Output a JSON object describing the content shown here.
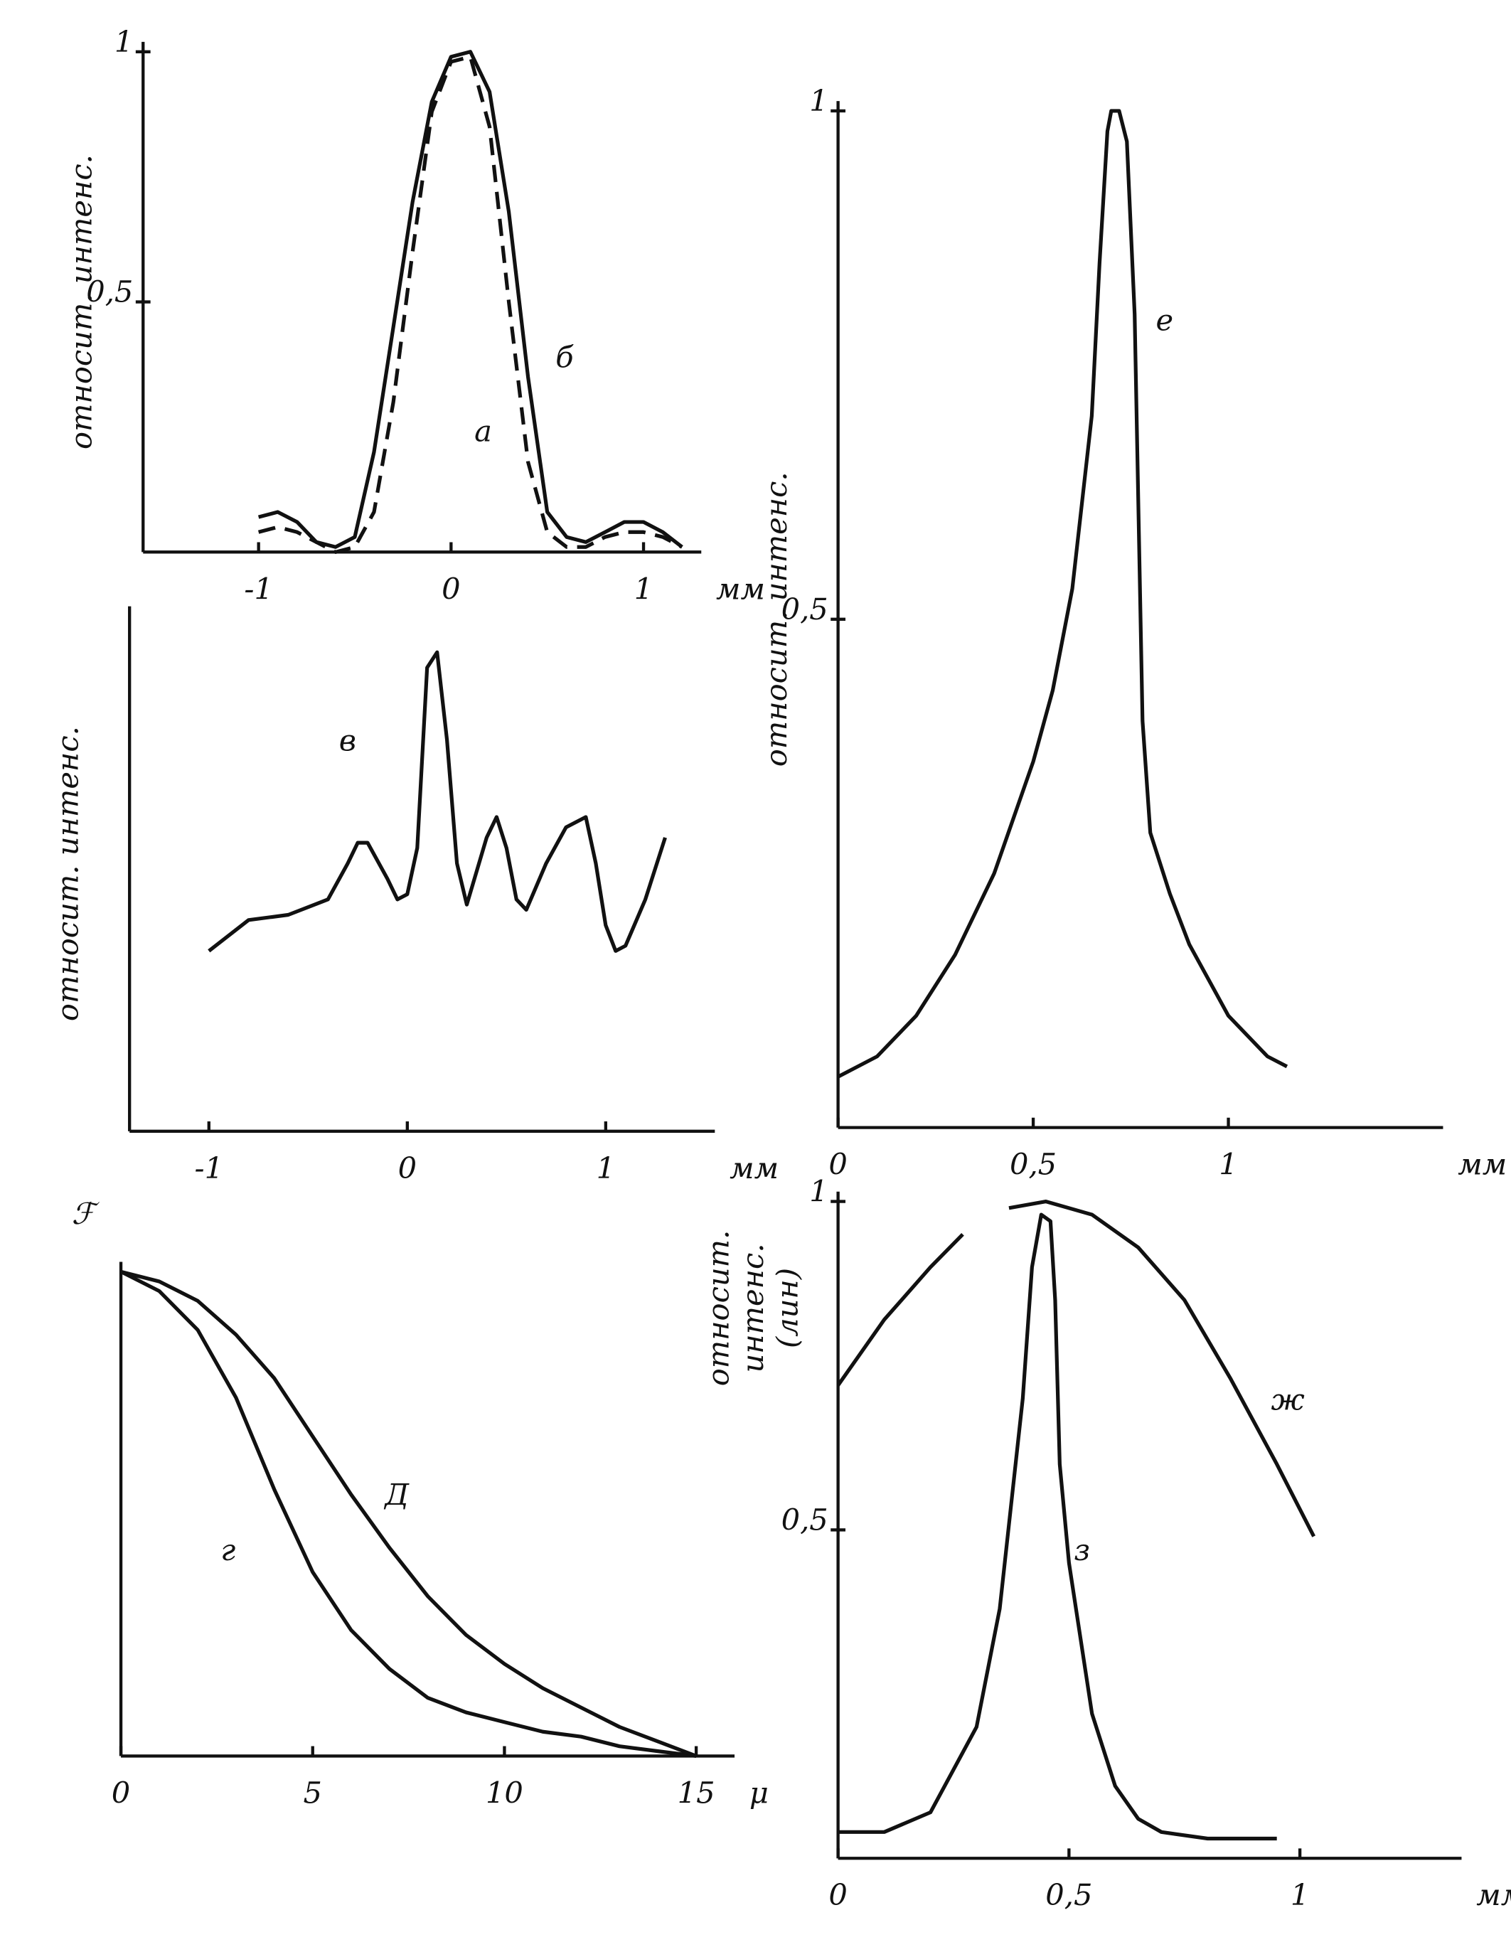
{
  "chart_data": [
    {
      "type": "line",
      "ylabel": "относит. интенс.",
      "xlabel": "мм",
      "xlim": [
        -1.6,
        1.3
      ],
      "ylim": [
        0,
        1
      ],
      "xticks": [
        -1,
        0,
        1
      ],
      "yticks": [
        {
          "value": 0.5,
          "label": "0,5"
        },
        1
      ],
      "series": [
        {
          "name": "а",
          "color": "#111111",
          "dash": true,
          "x": [
            -1,
            -0.9,
            -0.8,
            -0.7,
            -0.6,
            -0.5,
            -0.4,
            -0.3,
            -0.2,
            -0.1,
            0,
            0.1,
            0.2,
            0.3,
            0.4,
            0.5,
            0.6,
            0.7,
            0.8,
            0.9,
            1.0,
            1.1,
            1.2
          ],
          "values": [
            0.04,
            0.05,
            0.04,
            0.02,
            0.0,
            0.01,
            0.08,
            0.3,
            0.6,
            0.88,
            0.98,
            0.99,
            0.85,
            0.5,
            0.18,
            0.04,
            0.01,
            0.01,
            0.03,
            0.04,
            0.04,
            0.03,
            0.01
          ]
        },
        {
          "name": "б",
          "color": "#111111",
          "x": [
            -1,
            -0.9,
            -0.8,
            -0.7,
            -0.6,
            -0.5,
            -0.4,
            -0.3,
            -0.2,
            -0.1,
            0,
            0.1,
            0.2,
            0.3,
            0.4,
            0.5,
            0.6,
            0.7,
            0.8,
            0.9,
            1.0,
            1.1,
            1.2
          ],
          "values": [
            0.07,
            0.08,
            0.06,
            0.02,
            0.01,
            0.03,
            0.2,
            0.45,
            0.7,
            0.9,
            0.99,
            1.0,
            0.92,
            0.68,
            0.35,
            0.08,
            0.03,
            0.02,
            0.04,
            0.06,
            0.06,
            0.04,
            0.01
          ]
        }
      ]
    },
    {
      "type": "line",
      "ylabel": "относит. интенс.",
      "xlabel": "мм",
      "xlim": [
        -1.4,
        1.55
      ],
      "ylim": [
        0,
        1
      ],
      "xticks": [
        -1,
        0,
        1
      ],
      "yticks": [],
      "series": [
        {
          "name": "в",
          "color": "#111111",
          "x": [
            -1,
            -0.8,
            -0.6,
            -0.4,
            -0.3,
            -0.25,
            -0.2,
            -0.1,
            -0.05,
            0,
            0.05,
            0.1,
            0.15,
            0.2,
            0.25,
            0.3,
            0.4,
            0.45,
            0.5,
            0.55,
            0.6,
            0.7,
            0.8,
            0.9,
            0.95,
            1.0,
            1.05,
            1.1,
            1.2,
            1.3
          ],
          "values": [
            0.35,
            0.41,
            0.42,
            0.45,
            0.52,
            0.56,
            0.56,
            0.49,
            0.45,
            0.46,
            0.55,
            0.9,
            0.93,
            0.76,
            0.52,
            0.44,
            0.57,
            0.61,
            0.55,
            0.45,
            0.43,
            0.52,
            0.59,
            0.61,
            0.52,
            0.4,
            0.35,
            0.36,
            0.45,
            0.57
          ]
        }
      ]
    },
    {
      "type": "line",
      "ylabel": "ℱ",
      "xlabel": "μ",
      "xlim": [
        0,
        16
      ],
      "ylim": [
        0,
        1
      ],
      "xticks": [
        0,
        5,
        10,
        15
      ],
      "yticks": [],
      "series": [
        {
          "name": "г",
          "color": "#111111",
          "x": [
            0,
            1,
            2,
            3,
            4,
            5,
            6,
            7,
            8,
            9,
            10,
            11,
            12,
            13,
            14,
            15
          ],
          "values": [
            1,
            0.96,
            0.88,
            0.74,
            0.55,
            0.38,
            0.26,
            0.18,
            0.12,
            0.09,
            0.07,
            0.05,
            0.04,
            0.02,
            0.01,
            0
          ]
        },
        {
          "name": "Д",
          "color": "#111111",
          "x": [
            0,
            1,
            2,
            3,
            4,
            5,
            6,
            7,
            8,
            9,
            10,
            11,
            12,
            13,
            14,
            15
          ],
          "values": [
            1,
            0.98,
            0.94,
            0.87,
            0.78,
            0.66,
            0.54,
            0.43,
            0.33,
            0.25,
            0.19,
            0.14,
            0.1,
            0.06,
            0.03,
            0
          ]
        }
      ]
    },
    {
      "type": "line",
      "ylabel": "относит. интенс.",
      "xlabel": "мм",
      "xlim": [
        0,
        1.55
      ],
      "ylim": [
        0,
        1
      ],
      "xticks": [
        0,
        {
          "value": 0.5,
          "label": "0,5"
        },
        1
      ],
      "yticks": [
        {
          "value": 0.5,
          "label": "0,5"
        },
        1
      ],
      "series": [
        {
          "name": "е",
          "color": "#111111",
          "x": [
            0,
            0.1,
            0.2,
            0.3,
            0.4,
            0.5,
            0.55,
            0.6,
            0.65,
            0.67,
            0.69,
            0.7,
            0.72,
            0.74,
            0.76,
            0.78,
            0.8,
            0.85,
            0.9,
            1.0,
            1.1,
            1.15
          ],
          "values": [
            0.05,
            0.07,
            0.11,
            0.17,
            0.25,
            0.36,
            0.43,
            0.53,
            0.7,
            0.85,
            0.98,
            1.0,
            1.0,
            0.97,
            0.8,
            0.4,
            0.29,
            0.23,
            0.18,
            0.11,
            0.07,
            0.06
          ]
        }
      ]
    },
    {
      "type": "line",
      "ylabel": [
        "относит.",
        "интенс.",
        "(лин)"
      ],
      "xlabel": "мм",
      "xlim": [
        0,
        1.35
      ],
      "ylim": [
        0,
        1
      ],
      "xticks": [
        0,
        {
          "value": 0.5,
          "label": "0,5"
        },
        1
      ],
      "yticks": [
        {
          "value": 0.5,
          "label": "0,5"
        },
        1
      ],
      "series": [
        {
          "name": "ж",
          "color": "#111111",
          "x": [
            0,
            0.1,
            0.2,
            0.27,
            0.3,
            0.37,
            0.45,
            0.55,
            0.65,
            0.75,
            0.85,
            0.95,
            1.03
          ],
          "values": [
            0.72,
            0.82,
            0.9,
            0.95,
            null,
            0.99,
            1.0,
            0.98,
            0.93,
            0.85,
            0.73,
            0.6,
            0.49
          ]
        },
        {
          "name": "з",
          "color": "#111111",
          "x": [
            0,
            0.1,
            0.2,
            0.3,
            0.35,
            0.4,
            0.42,
            0.44,
            0.46,
            0.47,
            0.48,
            0.5,
            0.55,
            0.6,
            0.65,
            0.7,
            0.8,
            0.95
          ],
          "values": [
            0.04,
            0.04,
            0.07,
            0.2,
            0.38,
            0.7,
            0.9,
            0.98,
            0.97,
            0.85,
            0.6,
            0.45,
            0.22,
            0.11,
            0.06,
            0.04,
            0.03,
            0.03
          ]
        }
      ]
    }
  ]
}
